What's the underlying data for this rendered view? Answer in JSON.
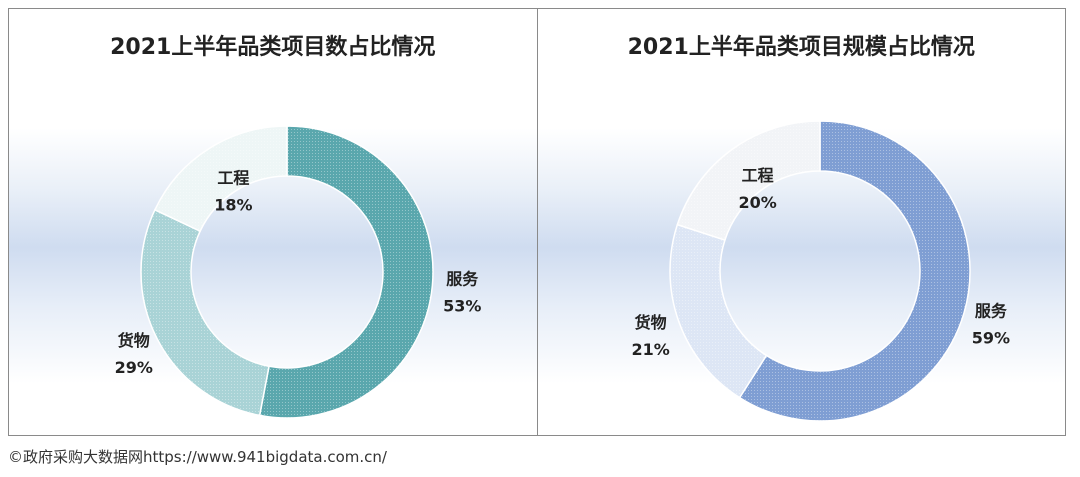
{
  "source": "©政府采购大数据网https://www.941bigdata.com.cn/",
  "chart_data": [
    {
      "type": "pie",
      "variant": "donut",
      "title": "2021上半年品类项目数占比情况",
      "categories": [
        "服务",
        "货物",
        "工程"
      ],
      "values": [
        53,
        29,
        18
      ],
      "value_labels": [
        "53%",
        "29%",
        "18%"
      ],
      "colors": [
        "#5aa7ad",
        "#a9d3d6",
        "#eef6f6"
      ],
      "stroke": "#8fc3c7"
    },
    {
      "type": "pie",
      "variant": "donut",
      "title": "2021上半年品类项目规模占比情况",
      "categories": [
        "服务",
        "货物",
        "工程"
      ],
      "values": [
        59,
        21,
        20
      ],
      "value_labels": [
        "59%",
        "21%",
        "20%"
      ],
      "colors": [
        "#7f9ed3",
        "#dde6f5",
        "#f2f4f7"
      ],
      "stroke": "#a9bde3"
    }
  ]
}
